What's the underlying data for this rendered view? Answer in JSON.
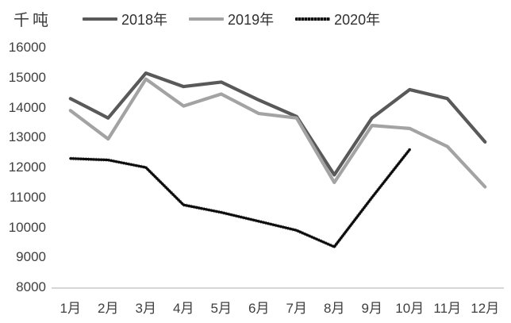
{
  "chart": {
    "unit_label": "千吨",
    "background": "#ffffff",
    "text_color": "#3f3f3f",
    "axis_line_color": "#c9c9c9"
  },
  "chart_data": {
    "type": "line",
    "title": "",
    "ylabel": "千吨",
    "xlabel": "",
    "grid": false,
    "legend_position": "top",
    "ylim": [
      8000,
      16000
    ],
    "ytick_step": 1000,
    "yticks": [
      8000,
      9000,
      10000,
      11000,
      12000,
      13000,
      14000,
      15000,
      16000
    ],
    "categories": [
      "1月",
      "2月",
      "3月",
      "4月",
      "5月",
      "6月",
      "7月",
      "8月",
      "9月",
      "10月",
      "11月",
      "12月"
    ],
    "series": [
      {
        "name": "2018年",
        "color": "#595959",
        "style": "solid",
        "values": [
          14300,
          13650,
          15150,
          14700,
          14850,
          14250,
          13700,
          11750,
          13650,
          14600,
          14300,
          12850
        ]
      },
      {
        "name": "2019年",
        "color": "#a3a3a3",
        "style": "solid",
        "values": [
          13900,
          12950,
          14950,
          14050,
          14450,
          13800,
          13650,
          11500,
          13400,
          13300,
          12700,
          11350
        ]
      },
      {
        "name": "2020年",
        "color": "#0d0d0d",
        "style": "textured",
        "values": [
          12300,
          12250,
          12000,
          10750,
          10500,
          10200,
          9900,
          9350,
          11000,
          12600,
          null,
          null
        ]
      }
    ]
  }
}
